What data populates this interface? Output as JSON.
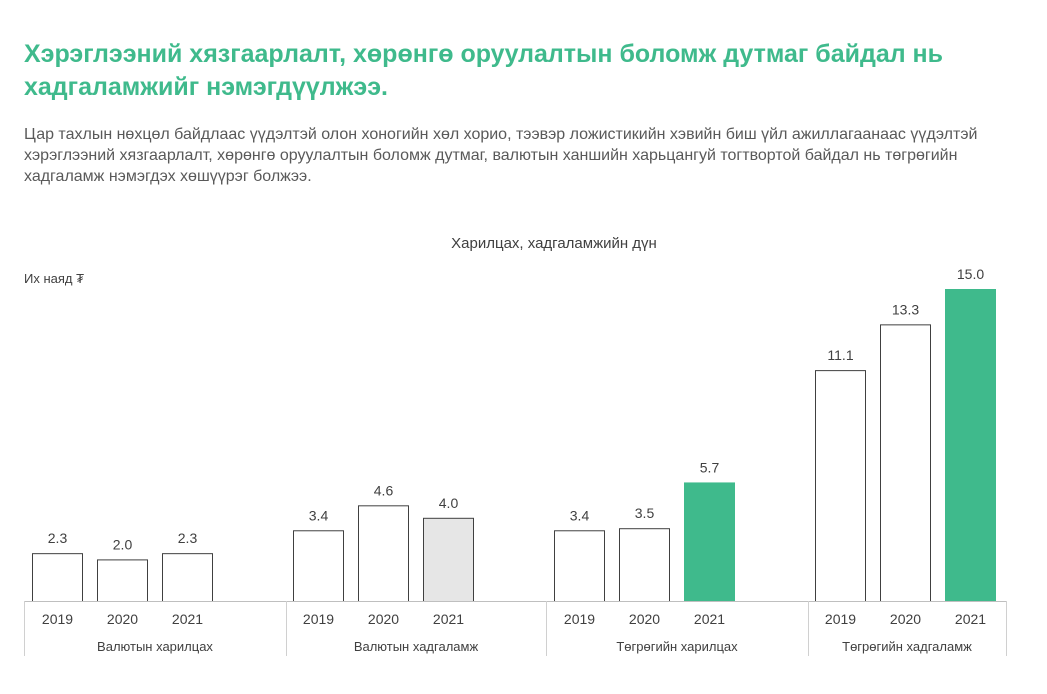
{
  "headline": "Хэрэглээний хязгаарлалт, хөрөнгө оруулалтын боломж дутмаг байдал нь хадгаламжийг нэмэгдүүлжээ.",
  "lead": "Цар тахлын нөхцөл байдлаас үүдэлтэй олон хоногийн хөл хорио, тээвэр ложистикийн хэвийн биш үйл ажиллагаанаас үүдэлтэй хэрэглээний хязгаарлалт, хөрөнгө оруулалтын боломж дутмаг, валютын ханшийн харьцангуй тогтвортой байдал нь төгрөгийн хадгаламж нэмэгдэх хөшүүрэг болжээ.",
  "colors": {
    "accent": "#3fba8c",
    "highlight_gray": "#e6e6e6",
    "bar_plain": "#ffffff",
    "bar_stroke": "#404040"
  },
  "chart_data": {
    "type": "bar",
    "title": "Харилцах, хадгаламжийн дүн",
    "ylabel": "Их наяд ₮",
    "xlabel": "",
    "ylim": [
      0,
      15
    ],
    "grid": false,
    "legend": "none",
    "groups": [
      {
        "label": "Валютын харилцах",
        "categories": [
          "2019",
          "2020",
          "2021"
        ],
        "values": [
          2.3,
          2.0,
          2.3
        ],
        "value_labels": [
          "2.3",
          "2.0",
          "2.3"
        ],
        "fills": [
          "plain",
          "plain",
          "plain"
        ]
      },
      {
        "label": "Валютын хадгаламж",
        "categories": [
          "2019",
          "2020",
          "2021"
        ],
        "values": [
          3.4,
          4.6,
          4.0
        ],
        "value_labels": [
          "3.4",
          "4.6",
          "4.0"
        ],
        "fills": [
          "plain",
          "plain",
          "gray"
        ]
      },
      {
        "label": "Төгрөгийн харилцах",
        "categories": [
          "2019",
          "2020",
          "2021"
        ],
        "values": [
          3.4,
          3.5,
          5.7
        ],
        "value_labels": [
          "3.4",
          "3.5",
          "5.7"
        ],
        "fills": [
          "plain",
          "plain",
          "accent"
        ]
      },
      {
        "label": "Төгрөгийн хадгаламж",
        "categories": [
          "2019",
          "2020",
          "2021"
        ],
        "values": [
          11.1,
          13.3,
          15.0
        ],
        "value_labels": [
          "11.1",
          "13.3",
          "15.0"
        ],
        "fills": [
          "plain",
          "plain",
          "accent"
        ]
      }
    ]
  }
}
